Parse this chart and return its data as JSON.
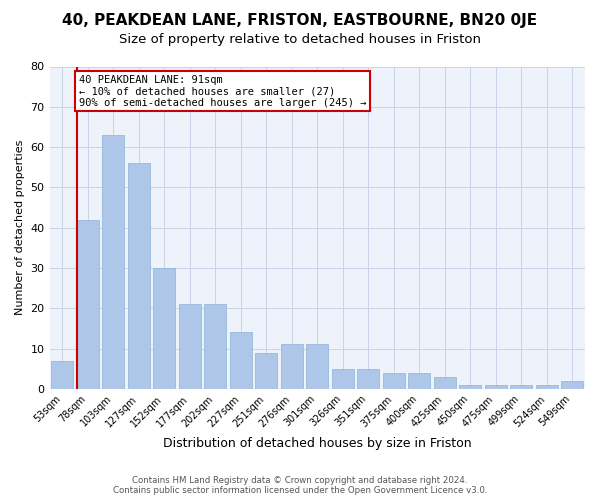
{
  "title": "40, PEAKDEAN LANE, FRISTON, EASTBOURNE, BN20 0JE",
  "subtitle": "Size of property relative to detached houses in Friston",
  "xlabel": "Distribution of detached houses by size in Friston",
  "ylabel": "Number of detached properties",
  "x_labels": [
    "53sqm",
    "78sqm",
    "103sqm",
    "127sqm",
    "152sqm",
    "177sqm",
    "202sqm",
    "227sqm",
    "251sqm",
    "276sqm",
    "301sqm",
    "326sqm",
    "351sqm",
    "375sqm",
    "400sqm",
    "425sqm",
    "450sqm",
    "475sqm",
    "499sqm",
    "524sqm",
    "549sqm"
  ],
  "bar_heights": [
    7,
    42,
    63,
    56,
    30,
    21,
    21,
    14,
    9,
    11,
    11,
    5,
    5,
    4,
    4,
    3,
    1,
    1,
    1,
    1,
    2
  ],
  "bar_color": "#aec6e8",
  "bar_edge_color": "#8ab4d8",
  "vline_x": 0.575,
  "vline_color": "#cc0000",
  "annotation_lines": [
    "40 PEAKDEAN LANE: 91sqm",
    "← 10% of detached houses are smaller (27)",
    "90% of semi-detached houses are larger (245) →"
  ],
  "annotation_box_color": "#cc0000",
  "grid_color": "#c8d4e8",
  "background_color": "#eef2fa",
  "footer_line1": "Contains HM Land Registry data © Crown copyright and database right 2024.",
  "footer_line2": "Contains public sector information licensed under the Open Government Licence v3.0.",
  "title_fontsize": 11,
  "subtitle_fontsize": 9.5,
  "ylim": [
    0,
    80
  ],
  "yticks": [
    0,
    10,
    20,
    30,
    40,
    50,
    60,
    70,
    80
  ]
}
